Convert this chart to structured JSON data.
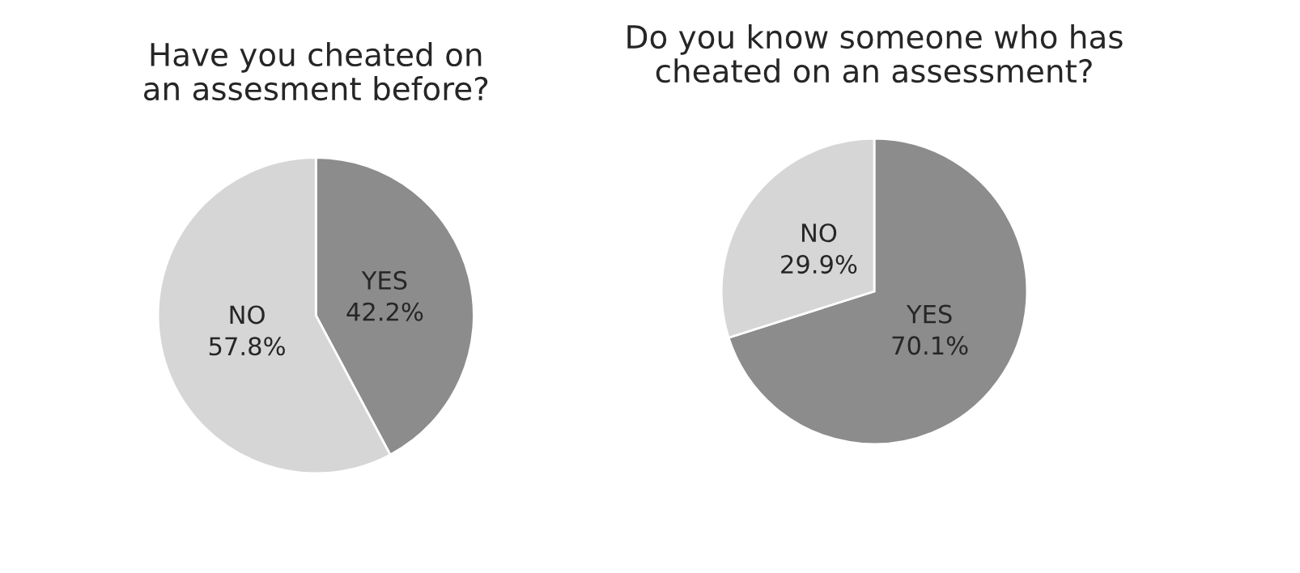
{
  "chart_data": [
    {
      "type": "pie",
      "title": "Have you cheated on\nan assesment before?",
      "categories": [
        "YES",
        "NO"
      ],
      "values": [
        42.2,
        57.8
      ],
      "value_labels": [
        "42.2%",
        "57.8%"
      ],
      "colors": [
        "#8c8c8c",
        "#d6d6d6"
      ]
    },
    {
      "type": "pie",
      "title": "Do you know someone who has\ncheated on an assessment?",
      "categories": [
        "YES",
        "NO"
      ],
      "values": [
        70.1,
        29.9
      ],
      "value_labels": [
        "70.1%",
        "29.9%"
      ],
      "colors": [
        "#8c8c8c",
        "#d6d6d6"
      ]
    }
  ]
}
